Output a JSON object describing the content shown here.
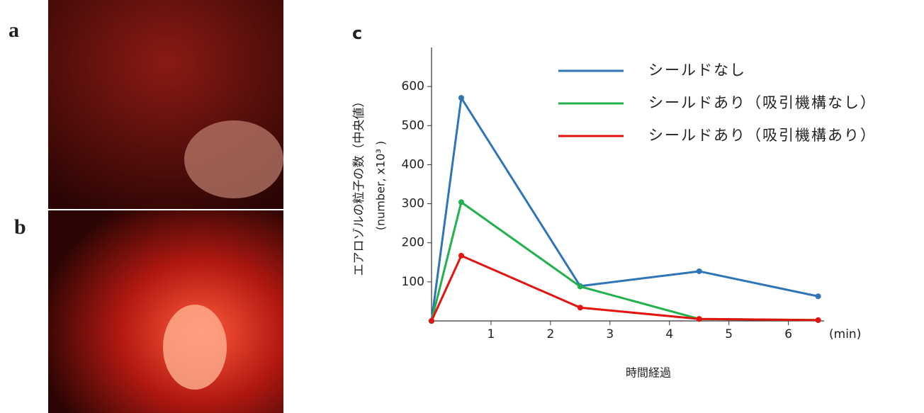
{
  "photo_panels": [
    "a",
    "b"
  ],
  "chart_data": {
    "type": "line",
    "title": "c",
    "x_label": "時間経過",
    "x_unit": "(min)",
    "y_label": "エアロゾルの粒子の数（中央値）",
    "y_label_unit": "(number, x10³ )",
    "x": [
      0,
      0.5,
      2.5,
      4.5,
      6.5
    ],
    "series": [
      {
        "name": "シールドなし",
        "color": "#2e75b6",
        "values": [
          0,
          571,
          89,
          127,
          63
        ]
      },
      {
        "name": "シールドあり（吸引機構なし）",
        "color": "#22b14c",
        "values": [
          0,
          304,
          88,
          5,
          2
        ]
      },
      {
        "name": "シールドあり（吸引機構あり）",
        "color": "#e3140f",
        "values": [
          0,
          167,
          34,
          5,
          2
        ]
      }
    ],
    "xlim": [
      0,
      6.6
    ],
    "ylim": [
      0,
      700
    ],
    "xticks": [
      1,
      2,
      3,
      4,
      5,
      6
    ],
    "yticks": [
      100,
      200,
      300,
      400,
      500,
      600
    ]
  }
}
